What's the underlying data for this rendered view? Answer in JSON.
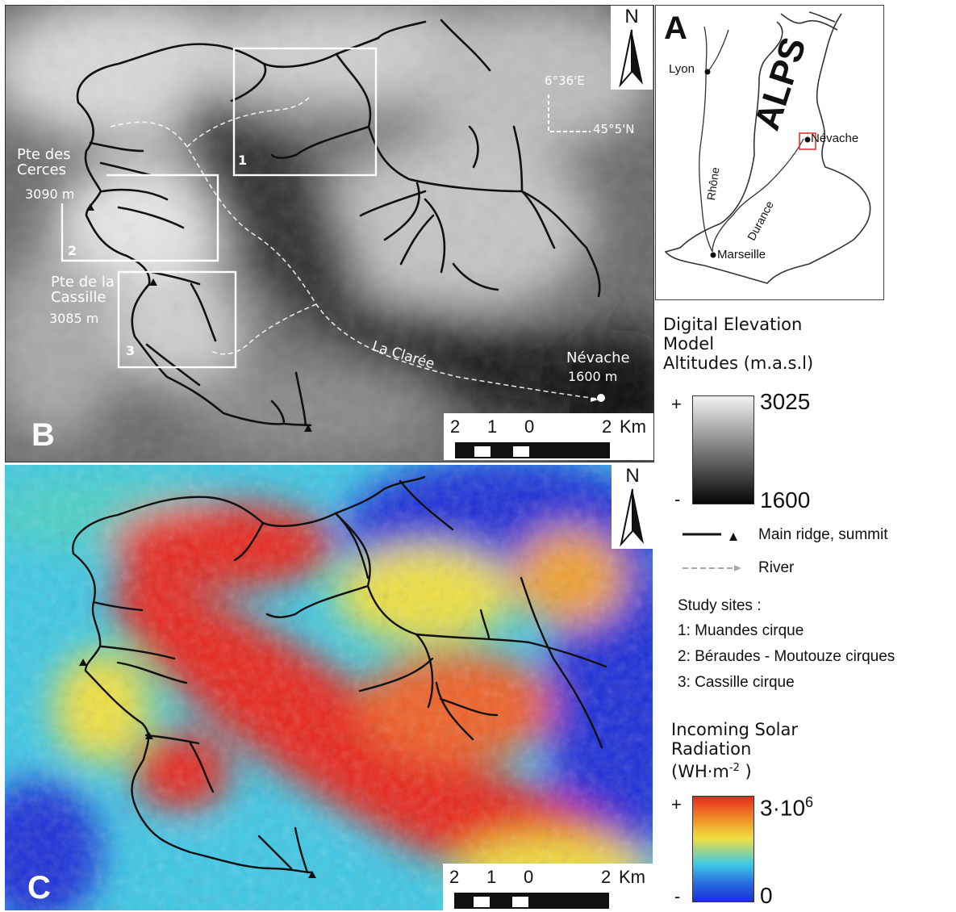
{
  "panel_b": {
    "letter": "B",
    "north": "N",
    "coord_lon": "6°36'E",
    "coord_lat": "45°5'N",
    "peak1_name1": "Pte des",
    "peak1_name2": "Cerces",
    "peak1_alt": "3090 m",
    "peak2_name1": "Pte de la",
    "peak2_name2": "Cassille",
    "peak2_alt": "3085 m",
    "site1": "1",
    "site2": "2",
    "site3": "3",
    "river": "La Clarée",
    "town": "Névache",
    "town_alt": "1600 m",
    "scale": [
      "2",
      "1",
      "0",
      "2",
      "Km"
    ]
  },
  "panel_c": {
    "letter": "C",
    "north": "N",
    "scale": [
      "2",
      "1",
      "0",
      "2",
      "Km"
    ]
  },
  "panel_a": {
    "letter": "A",
    "region": "ALPS",
    "cities": [
      "Lyon",
      "Névache",
      "Marseille"
    ],
    "rivers": [
      "Rhône",
      "Durance"
    ]
  },
  "legend": {
    "dem_title": [
      "Digital Elevation",
      "Model",
      "Altitudes (m.a.s.l)"
    ],
    "dem_max": "3025",
    "dem_min": "1600",
    "plus": "+",
    "minus": "-",
    "ridge_label": "Main ridge, summit",
    "river_label": "River",
    "sites_title": "Study sites :",
    "sites": [
      "1: Muandes cirque",
      "2: Béraudes - Moutouze cirques",
      "3: Cassille cirque"
    ],
    "solar_title": [
      "Incoming Solar",
      "Radiation"
    ],
    "solar_unit_open": "(WH·m",
    "solar_unit_exp": "-2",
    "solar_unit_close": " )",
    "solar_max_base": "3·10",
    "solar_max_exp": "6",
    "solar_min": "0"
  },
  "colors": {
    "dem_high": "#f2f2f2",
    "dem_low": "#050505",
    "solar_high": "#e8281e",
    "solar_mid": "#f0e040",
    "solar_cyan": "#3cc8e6",
    "solar_low": "#1a2fd8",
    "ridge": "#111111",
    "site_box": "#ffffff"
  }
}
